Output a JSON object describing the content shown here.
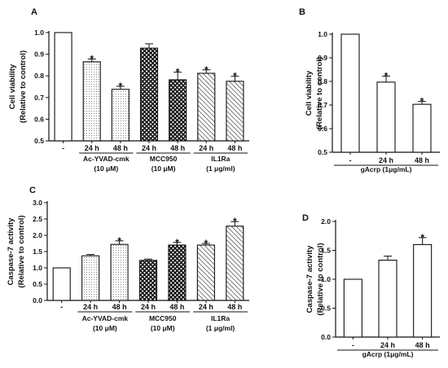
{
  "chart_data": [
    {
      "panel": "A",
      "type": "bar",
      "ylabel": "Cell viability",
      "ylabel2": "(Relative to control)",
      "ylim": [
        0.5,
        1.0
      ],
      "yticks": [
        "0.5",
        "0.6",
        "0.7",
        "0.8",
        "0.9",
        "1.0"
      ],
      "categories": [
        "-",
        "24 h",
        "48 h",
        "24 h",
        "48 h",
        "24 h",
        "48 h"
      ],
      "values": [
        1.0,
        0.865,
        0.738,
        0.928,
        0.782,
        0.812,
        0.775
      ],
      "errors": [
        0,
        0.013,
        0.014,
        0.02,
        0.035,
        0.016,
        0.023
      ],
      "significant": [
        false,
        true,
        true,
        false,
        true,
        true,
        true
      ],
      "fills": [
        "white",
        "dots",
        "dots",
        "cross",
        "cross",
        "hatch",
        "hatch"
      ],
      "groups": [
        {
          "line1": "Ac-YVAD-cmk",
          "line2": "(10 μM)",
          "span": [
            1,
            2
          ]
        },
        {
          "line1": "MCC950",
          "line2": "(10 μM)",
          "span": [
            3,
            4
          ]
        },
        {
          "line1": "IL1Ra",
          "line2": "(1 μg/ml)",
          "span": [
            5,
            6
          ]
        }
      ]
    },
    {
      "panel": "B",
      "type": "bar",
      "ylabel": "Cell viability",
      "ylabel2": "(Relative to control)",
      "ylim": [
        0.5,
        1.0
      ],
      "yticks": [
        "0.5",
        "0.6",
        "0.7",
        "0.8",
        "0.9",
        "1.0"
      ],
      "categories": [
        "-",
        "24 h",
        "48 h"
      ],
      "values": [
        1.0,
        0.797,
        0.703
      ],
      "errors": [
        0,
        0.025,
        0.012
      ],
      "significant": [
        false,
        true,
        true
      ],
      "fills": [
        "white",
        "white",
        "white"
      ],
      "groups": [
        {
          "line1": "gAcrp (1μg/mL)",
          "line2": "",
          "span": [
            0,
            2
          ]
        }
      ]
    },
    {
      "panel": "C",
      "type": "bar",
      "ylabel": "Caspase-7 activity",
      "ylabel2": "(Relative to control)",
      "ylim": [
        0.0,
        3.0
      ],
      "yticks": [
        "0.0",
        "0.5",
        "1.0",
        "1.5",
        "2.0",
        "2.5",
        "3.0"
      ],
      "categories": [
        "-",
        "24 h",
        "48 h",
        "24 h",
        "48 h",
        "24 h",
        "48 h"
      ],
      "values": [
        1.0,
        1.37,
        1.72,
        1.23,
        1.7,
        1.7,
        2.28
      ],
      "errors": [
        0,
        0.04,
        0.11,
        0.04,
        0.08,
        0.05,
        0.14
      ],
      "significant": [
        false,
        false,
        true,
        false,
        true,
        true,
        true
      ],
      "fills": [
        "white",
        "dots",
        "dots",
        "cross",
        "cross",
        "hatch",
        "hatch"
      ],
      "groups": [
        {
          "line1": "Ac-YVAD-cmk",
          "line2": "(10 μM)",
          "span": [
            1,
            2
          ]
        },
        {
          "line1": "MCC950",
          "line2": "(10 μM)",
          "span": [
            3,
            4
          ]
        },
        {
          "line1": "IL1Ra",
          "line2": "(1 μg/ml)",
          "span": [
            5,
            6
          ]
        }
      ]
    },
    {
      "panel": "D",
      "type": "bar",
      "ylabel": "Caspase-7 activity",
      "ylabel2": "(Relative to control)",
      "ylim": [
        0.0,
        2.0
      ],
      "yticks": [
        "0.0",
        "0.5",
        "1.0",
        "1.5",
        "2.0"
      ],
      "categories": [
        "-",
        "24 h",
        "48 h"
      ],
      "values": [
        1.0,
        1.33,
        1.6
      ],
      "errors": [
        0,
        0.07,
        0.12
      ],
      "significant": [
        false,
        false,
        true
      ],
      "fills": [
        "white",
        "white",
        "white"
      ],
      "groups": [
        {
          "line1": "gAcrp (1μg/mL)",
          "line2": "",
          "span": [
            0,
            2
          ]
        }
      ]
    }
  ]
}
